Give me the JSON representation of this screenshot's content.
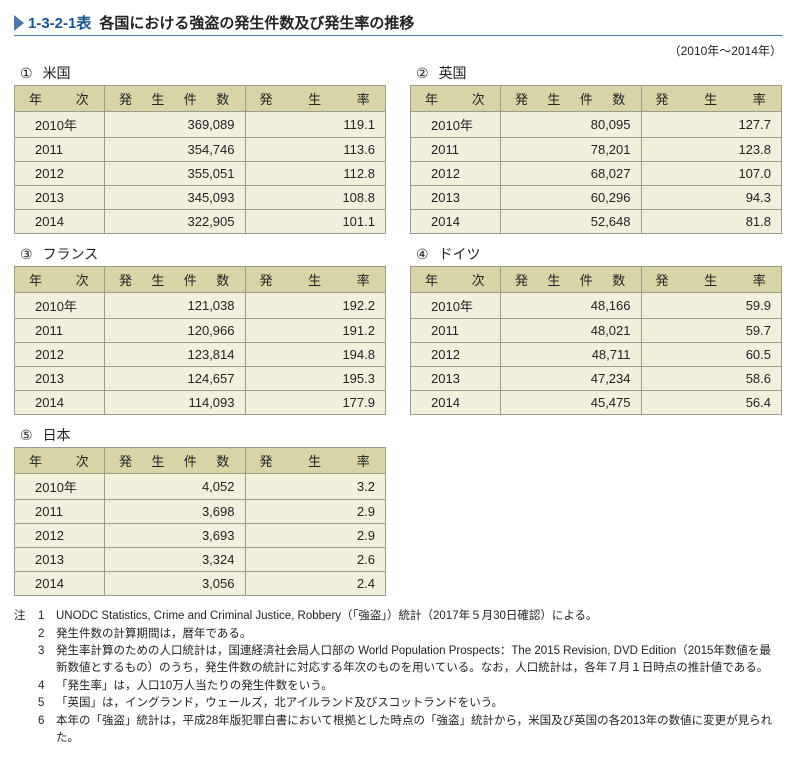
{
  "header": {
    "code": "1-3-2-1表",
    "title": "各国における強盗の発生件数及び発生率の推移",
    "year_range": "（2010年～2014年）"
  },
  "table_headers": {
    "year": "年次",
    "count": "発生件数",
    "rate": "発生率"
  },
  "colors": {
    "header_bg": "#d8d4a8",
    "cell_bg": "#f2f0dc",
    "border": "#9c9c8a",
    "title_accent": "#1a5490",
    "rule": "#4a7aa8"
  },
  "tables": [
    {
      "marker": "①",
      "name": "米国",
      "rows": [
        {
          "year": "2010年",
          "count": "369,089",
          "rate": "119.1"
        },
        {
          "year": "2011",
          "count": "354,746",
          "rate": "113.6"
        },
        {
          "year": "2012",
          "count": "355,051",
          "rate": "112.8"
        },
        {
          "year": "2013",
          "count": "345,093",
          "rate": "108.8"
        },
        {
          "year": "2014",
          "count": "322,905",
          "rate": "101.1"
        }
      ]
    },
    {
      "marker": "②",
      "name": "英国",
      "rows": [
        {
          "year": "2010年",
          "count": "80,095",
          "rate": "127.7"
        },
        {
          "year": "2011",
          "count": "78,201",
          "rate": "123.8"
        },
        {
          "year": "2012",
          "count": "68,027",
          "rate": "107.0"
        },
        {
          "year": "2013",
          "count": "60,296",
          "rate": "94.3"
        },
        {
          "year": "2014",
          "count": "52,648",
          "rate": "81.8"
        }
      ]
    },
    {
      "marker": "③",
      "name": "フランス",
      "rows": [
        {
          "year": "2010年",
          "count": "121,038",
          "rate": "192.2"
        },
        {
          "year": "2011",
          "count": "120,966",
          "rate": "191.2"
        },
        {
          "year": "2012",
          "count": "123,814",
          "rate": "194.8"
        },
        {
          "year": "2013",
          "count": "124,657",
          "rate": "195.3"
        },
        {
          "year": "2014",
          "count": "114,093",
          "rate": "177.9"
        }
      ]
    },
    {
      "marker": "④",
      "name": "ドイツ",
      "rows": [
        {
          "year": "2010年",
          "count": "48,166",
          "rate": "59.9"
        },
        {
          "year": "2011",
          "count": "48,021",
          "rate": "59.7"
        },
        {
          "year": "2012",
          "count": "48,711",
          "rate": "60.5"
        },
        {
          "year": "2013",
          "count": "47,234",
          "rate": "58.6"
        },
        {
          "year": "2014",
          "count": "45,475",
          "rate": "56.4"
        }
      ]
    },
    {
      "marker": "⑤",
      "name": "日本",
      "rows": [
        {
          "year": "2010年",
          "count": "4,052",
          "rate": "3.2"
        },
        {
          "year": "2011",
          "count": "3,698",
          "rate": "2.9"
        },
        {
          "year": "2012",
          "count": "3,693",
          "rate": "2.9"
        },
        {
          "year": "2013",
          "count": "3,324",
          "rate": "2.6"
        },
        {
          "year": "2014",
          "count": "3,056",
          "rate": "2.4"
        }
      ]
    }
  ],
  "notes": {
    "label": "注",
    "items": [
      {
        "n": "1",
        "t": "UNODC Statistics, Crime and Criminal Justice, Robbery（「強盗」）統計（2017年５月30日確認）による。"
      },
      {
        "n": "2",
        "t": "発生件数の計算期間は，暦年である。"
      },
      {
        "n": "3",
        "t": "発生率計算のための人口統計は，国連経済社会局人口部の World Population Prospects：The 2015 Revision, DVD Edition（2015年数値を最新数値とするもの）のうち，発生件数の統計に対応する年次のものを用いている。なお，人口統計は，各年７月１日時点の推計値である。"
      },
      {
        "n": "4",
        "t": "「発生率」は，人口10万人当たりの発生件数をいう。"
      },
      {
        "n": "5",
        "t": "「英国」は，イングランド，ウェールズ，北アイルランド及びスコットランドをいう。"
      },
      {
        "n": "6",
        "t": "本年の「強盗」統計は，平成28年版犯罪白書において根拠とした時点の「強盗」統計から，米国及び英国の各2013年の数値に変更が見られた。"
      }
    ]
  }
}
